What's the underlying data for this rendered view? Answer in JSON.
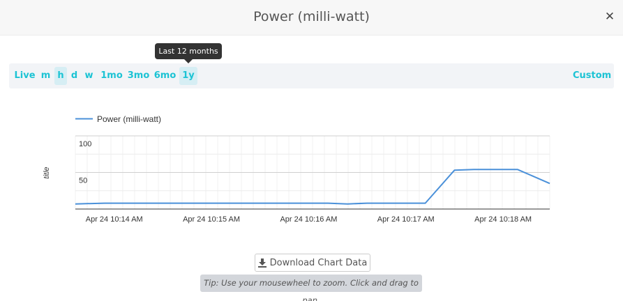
{
  "modal": {
    "title": "Power (milli-watt)",
    "close_icon": "close-icon",
    "close_glyph": "✕"
  },
  "tooltip": {
    "text": "Last 12 months"
  },
  "range_bar": {
    "options": [
      {
        "label": "Live",
        "active": false
      },
      {
        "label": "m",
        "active": false
      },
      {
        "label": "h",
        "active": true
      },
      {
        "label": "d",
        "active": false
      },
      {
        "label": "w",
        "active": false
      },
      {
        "label": "1mo",
        "active": false
      },
      {
        "label": "3mo",
        "active": false
      },
      {
        "label": "6mo",
        "active": false
      },
      {
        "label": "1y",
        "active": true
      }
    ],
    "custom_label": "Custom",
    "accent_color": "#1cc3d4"
  },
  "chart_data": {
    "type": "line",
    "ylabel": "title",
    "xlabel": "",
    "ylim": [
      0,
      100
    ],
    "yticks": [
      {
        "value": 100,
        "label": "100"
      },
      {
        "value": 50,
        "label": "50"
      }
    ],
    "xticks": [
      {
        "value": 1,
        "label": "Apr 24 10:14 AM"
      },
      {
        "value": 2,
        "label": "Apr 24 10:15 AM"
      },
      {
        "value": 3,
        "label": "Apr 24 10:16 AM"
      },
      {
        "value": 4,
        "label": "Apr 24 10:17 AM"
      },
      {
        "value": 5,
        "label": "Apr 24 10:18 AM"
      }
    ],
    "xlim": [
      0.6,
      5.48
    ],
    "legend": "top-left",
    "grid": true,
    "series": [
      {
        "name": "Power (milli-watt)",
        "color": "#4a90d9",
        "x": [
          0.6,
          0.9,
          1.3,
          1.6,
          2.0,
          2.4,
          2.8,
          3.2,
          3.4,
          3.6,
          3.9,
          4.2,
          4.5,
          4.7,
          4.9,
          5.15,
          5.48
        ],
        "y": [
          7,
          8,
          8,
          8,
          8,
          8,
          8,
          8,
          7,
          8,
          8,
          8,
          53,
          54,
          54,
          54,
          35
        ]
      }
    ]
  },
  "download": {
    "label": "Download Chart Data",
    "icon": "download-icon"
  },
  "tip": {
    "text": "Tip: Use your mousewheel to zoom. Click and drag to pan."
  }
}
